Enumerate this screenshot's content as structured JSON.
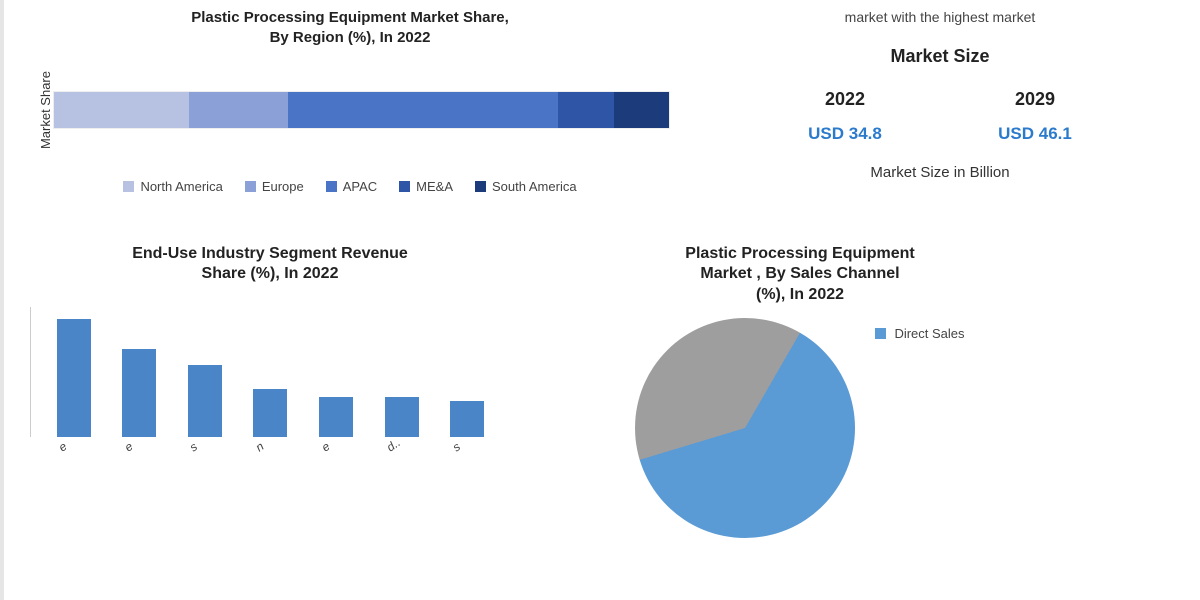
{
  "region_chart": {
    "type": "stacked-bar-horizontal",
    "title_line1": "Plastic Processing Equipment  Market Share,",
    "title_line2": "By Region (%), In 2022",
    "y_label": "Market Share",
    "segments": [
      {
        "name": "North America",
        "pct": 22,
        "color": "#b7c2e3"
      },
      {
        "name": "Europe",
        "pct": 16,
        "color": "#8aa0d6"
      },
      {
        "name": "APAC",
        "pct": 44,
        "color": "#4a74c5"
      },
      {
        "name": "ME&A",
        "pct": 9,
        "color": "#2f56a6"
      },
      {
        "name": "South America",
        "pct": 9,
        "color": "#1c3b7a"
      }
    ]
  },
  "market_size": {
    "intro": "market with the highest market",
    "heading": "Market Size",
    "year_a": "2022",
    "year_b": "2029",
    "val_a": "USD 34.8",
    "val_b": "USD 46.1",
    "unit": "Market Size in Billion",
    "value_color": "#2b7acb"
  },
  "bar_chart": {
    "type": "bar",
    "title_line1": "End-Use Industry Segment Revenue",
    "title_line2": "Share (%), In 2022",
    "bar_color": "#4a86c7",
    "max_h": 118,
    "bars": [
      {
        "label": "e",
        "value": 118
      },
      {
        "label": "e",
        "value": 88
      },
      {
        "label": "s",
        "value": 72
      },
      {
        "label": "n",
        "value": 48
      },
      {
        "label": "e",
        "value": 40
      },
      {
        "label": "d..",
        "value": 40
      },
      {
        "label": "s",
        "value": 36
      }
    ]
  },
  "pie_chart": {
    "type": "pie",
    "title_line1": "Plastic Processing Equipment",
    "title_line2": "Market , By Sales Channel",
    "title_line3": "(%), In 2022",
    "slices": [
      {
        "name": "Direct Sales",
        "pct": 62,
        "color": "#5a9bd5"
      },
      {
        "name": "",
        "pct": 38,
        "color": "#9e9e9e"
      }
    ],
    "legend_visible": "Direct Sales"
  }
}
